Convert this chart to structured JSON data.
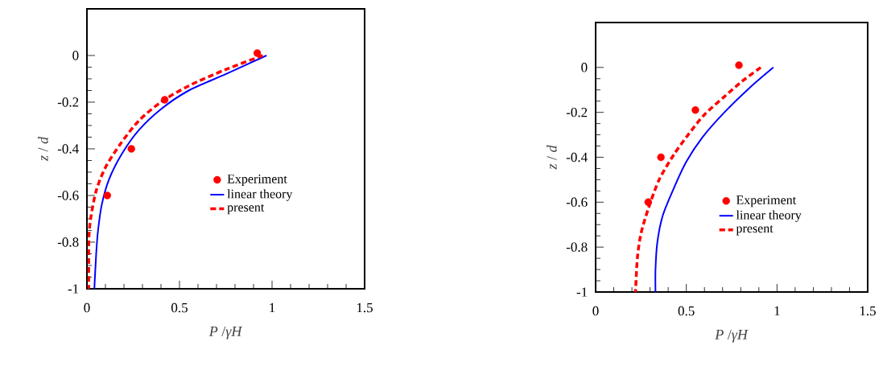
{
  "chart_data": [
    {
      "type": "line",
      "xlabel": "*P* /*γH*",
      "ylabel": "*z* / *d*",
      "xlim": [
        0,
        1.5
      ],
      "ylim": [
        -1,
        0.2
      ],
      "xticks": [
        0,
        0.5,
        1,
        1.5
      ],
      "yticks": [
        -1,
        -0.8,
        -0.6,
        -0.4,
        -0.2,
        0
      ],
      "legend": "right",
      "series": [
        {
          "name": "Experiment",
          "type": "scatter",
          "marker": "circle",
          "color": "#ff0000",
          "x": [
            0.92,
            0.42,
            0.24,
            0.11
          ],
          "values": [
            0.01,
            -0.19,
            -0.4,
            -0.6
          ]
        },
        {
          "name": "linear theory",
          "type": "line",
          "line_style": "solid",
          "color": "#0000ff",
          "x": [
            0.97,
            0.75,
            0.55,
            0.4,
            0.28,
            0.19,
            0.12,
            0.08,
            0.06,
            0.05,
            0.04
          ],
          "values": [
            0,
            -0.08,
            -0.15,
            -0.23,
            -0.32,
            -0.42,
            -0.53,
            -0.64,
            -0.75,
            -0.85,
            -1
          ]
        },
        {
          "name": "present",
          "type": "line",
          "line_style": "dashed",
          "color": "#ff0000",
          "x": [
            0.95,
            0.75,
            0.55,
            0.4,
            0.28,
            0.18,
            0.1,
            0.05,
            0.02,
            0.01,
            0.01
          ],
          "values": [
            0,
            -0.06,
            -0.13,
            -0.2,
            -0.28,
            -0.38,
            -0.48,
            -0.58,
            -0.7,
            -0.8,
            -1
          ]
        }
      ]
    },
    {
      "type": "line",
      "xlabel": "*P* /*γH*",
      "ylabel": "*z* / *d*",
      "xlim": [
        0,
        1.5
      ],
      "ylim": [
        -1,
        0.2
      ],
      "xticks": [
        0,
        0.5,
        1,
        1.5
      ],
      "yticks": [
        -1,
        -0.8,
        -0.6,
        -0.4,
        -0.2,
        0
      ],
      "legend": "right",
      "series": [
        {
          "name": "Experiment",
          "type": "scatter",
          "marker": "circle",
          "color": "#ff0000",
          "x": [
            0.79,
            0.55,
            0.36,
            0.29
          ],
          "values": [
            0.01,
            -0.19,
            -0.4,
            -0.6
          ]
        },
        {
          "name": "linear theory",
          "type": "line",
          "line_style": "solid",
          "color": "#0000ff",
          "x": [
            0.98,
            0.85,
            0.71,
            0.59,
            0.5,
            0.43,
            0.37,
            0.34,
            0.33,
            0.33
          ],
          "values": [
            0,
            -0.09,
            -0.2,
            -0.31,
            -0.42,
            -0.54,
            -0.66,
            -0.78,
            -0.9,
            -1
          ]
        },
        {
          "name": "present",
          "type": "line",
          "line_style": "dashed",
          "color": "#ff0000",
          "x": [
            0.91,
            0.81,
            0.71,
            0.6,
            0.51,
            0.43,
            0.35,
            0.29,
            0.25,
            0.23,
            0.22
          ],
          "values": [
            0,
            -0.06,
            -0.13,
            -0.21,
            -0.3,
            -0.39,
            -0.5,
            -0.63,
            -0.74,
            -0.85,
            -1
          ]
        }
      ]
    }
  ]
}
